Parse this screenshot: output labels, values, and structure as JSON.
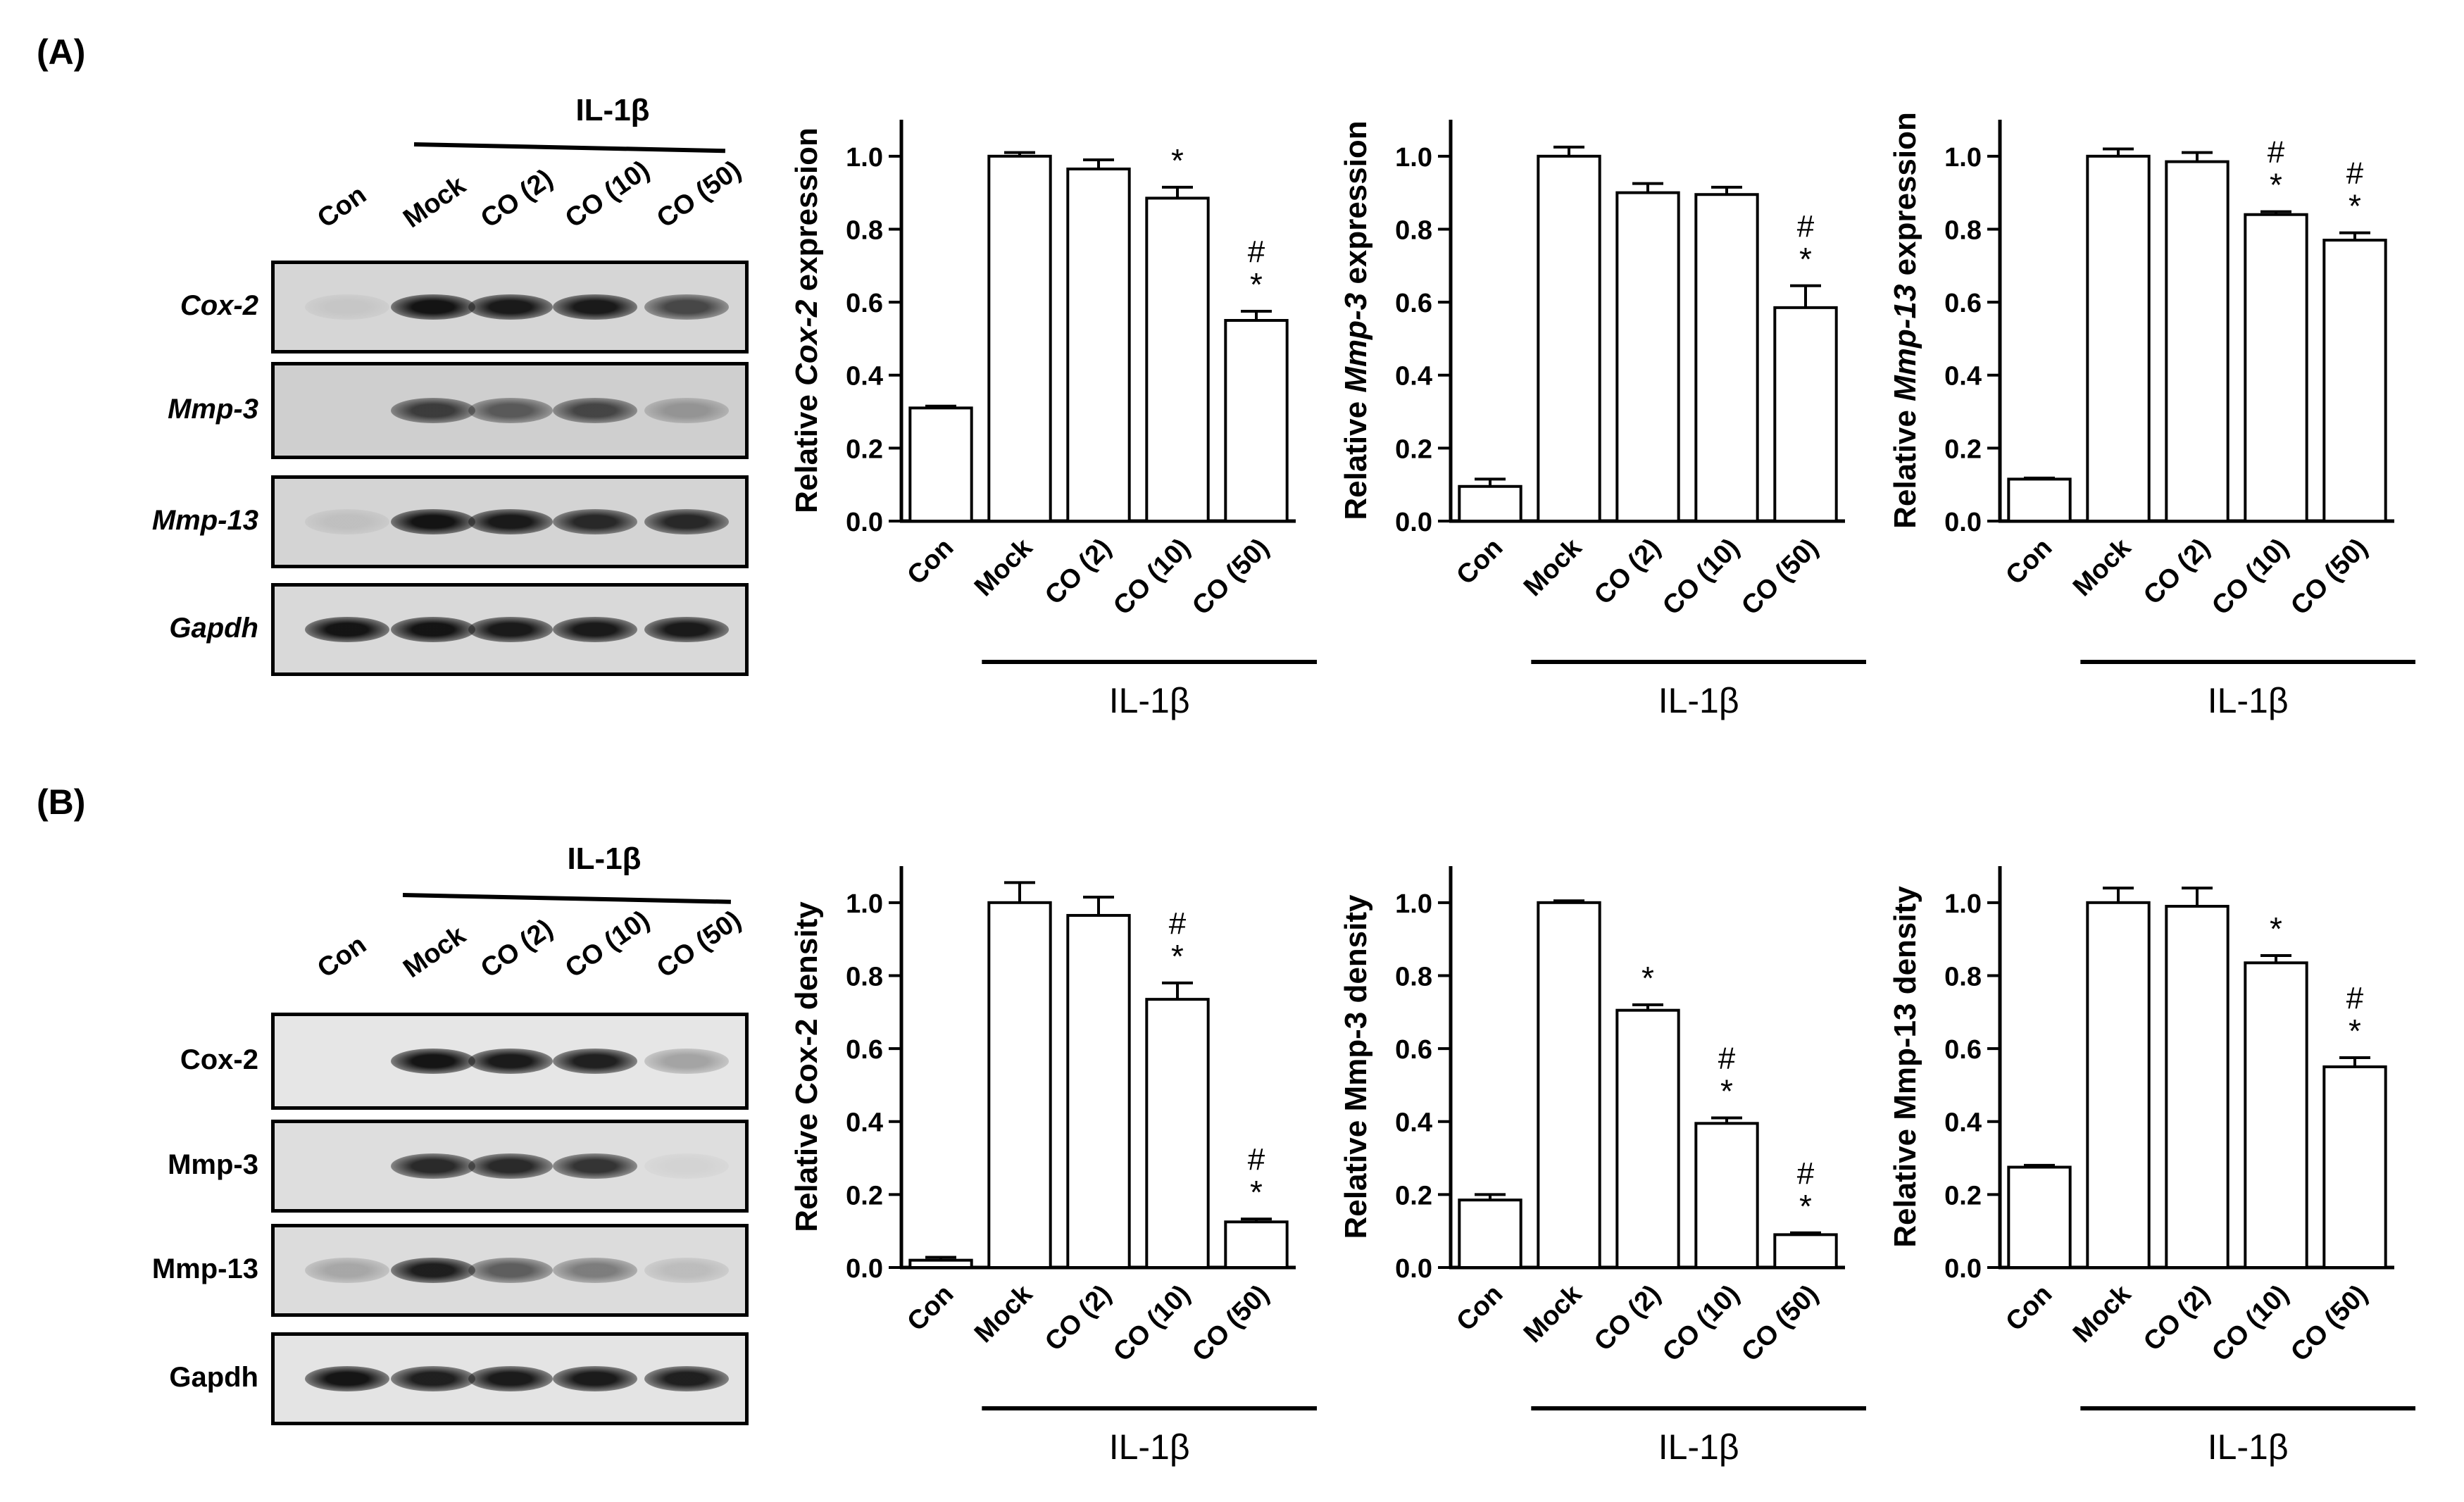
{
  "panels": [
    {
      "label": "(A)",
      "blot": {
        "header": "IL-1β",
        "lanes": [
          "Con",
          "Mock",
          "CO (2)",
          "CO (10)",
          "CO (50)"
        ],
        "italic_labels": true,
        "rows": [
          {
            "label": "Cox-2",
            "intensity": [
              0.08,
              0.95,
              0.92,
              0.92,
              0.7
            ],
            "background": "#d6d6d6"
          },
          {
            "label": "Mmp-3",
            "intensity": [
              0.0,
              0.75,
              0.6,
              0.7,
              0.3
            ],
            "background": "#cfcfcf"
          },
          {
            "label": "Mmp-13",
            "intensity": [
              0.1,
              0.95,
              0.92,
              0.85,
              0.85
            ],
            "background": "#d4d4d4"
          },
          {
            "label": "Gapdh",
            "intensity": [
              0.95,
              0.95,
              0.92,
              0.92,
              0.92
            ],
            "background": "#d9d9d9"
          }
        ]
      }
    },
    {
      "label": "(B)",
      "blot": {
        "header": "IL-1β",
        "lanes": [
          "Con",
          "Mock",
          "CO (2)",
          "CO (10)",
          "CO (50)"
        ],
        "italic_labels": false,
        "rows": [
          {
            "label": "Cox-2",
            "intensity": [
              0.0,
              0.95,
              0.92,
              0.9,
              0.3
            ],
            "background": "#e6e6e6"
          },
          {
            "label": "Mmp-3",
            "intensity": [
              0.0,
              0.85,
              0.85,
              0.8,
              0.05
            ],
            "background": "#dedede"
          },
          {
            "label": "Mmp-13",
            "intensity": [
              0.25,
              0.9,
              0.6,
              0.45,
              0.15
            ],
            "background": "#dcdcdc"
          },
          {
            "label": "Gapdh",
            "intensity": [
              0.95,
              0.9,
              0.92,
              0.92,
              0.9
            ],
            "background": "#e4e4e4"
          }
        ]
      }
    }
  ],
  "chart_data": [
    {
      "type": "bar",
      "panel": "A",
      "ylabel_prefix": "Relative ",
      "ylabel_gene": "Cox-2",
      "ylabel_suffix": " expression",
      "ylabel_italic": true,
      "categories": [
        "Con",
        "Mock",
        "CO (2)",
        "CO (10)",
        "CO (50)"
      ],
      "values": [
        0.31,
        1.0,
        0.965,
        0.885,
        0.55
      ],
      "errors": [
        0.005,
        0.01,
        0.025,
        0.03,
        0.025
      ],
      "annotations": [
        "",
        "",
        "",
        "*",
        "#\n*"
      ],
      "ylim": [
        0,
        1.1
      ],
      "yticks": [
        "0.0",
        "0.2",
        "0.4",
        "0.6",
        "0.8",
        "1.0"
      ],
      "group_label": "IL-1β"
    },
    {
      "type": "bar",
      "panel": "A",
      "ylabel_prefix": "Relative ",
      "ylabel_gene": "Mmp-3",
      "ylabel_suffix": " expression",
      "ylabel_italic": true,
      "categories": [
        "Con",
        "Mock",
        "CO (2)",
        "CO (10)",
        "CO (50)"
      ],
      "values": [
        0.095,
        1.0,
        0.9,
        0.895,
        0.585
      ],
      "errors": [
        0.02,
        0.025,
        0.025,
        0.02,
        0.06
      ],
      "annotations": [
        "",
        "",
        "",
        "",
        "#\n*"
      ],
      "ylim": [
        0,
        1.1
      ],
      "yticks": [
        "0.0",
        "0.2",
        "0.4",
        "0.6",
        "0.8",
        "1.0"
      ],
      "group_label": "IL-1β"
    },
    {
      "type": "bar",
      "panel": "A",
      "ylabel_prefix": "Relative ",
      "ylabel_gene": "Mmp-13",
      "ylabel_suffix": " expression",
      "ylabel_italic": true,
      "categories": [
        "Con",
        "Mock",
        "CO (2)",
        "CO (10)",
        "CO (50)"
      ],
      "values": [
        0.115,
        1.0,
        0.985,
        0.84,
        0.77
      ],
      "errors": [
        0.003,
        0.02,
        0.025,
        0.008,
        0.02
      ],
      "annotations": [
        "",
        "",
        "",
        "#\n*",
        "#\n*"
      ],
      "ylim": [
        0,
        1.1
      ],
      "yticks": [
        "0.0",
        "0.2",
        "0.4",
        "0.6",
        "0.8",
        "1.0"
      ],
      "group_label": "IL-1β"
    },
    {
      "type": "bar",
      "panel": "B",
      "ylabel_prefix": "Relative ",
      "ylabel_gene": "Cox-2",
      "ylabel_suffix": " density",
      "ylabel_italic": false,
      "categories": [
        "Con",
        "Mock",
        "CO (2)",
        "CO (10)",
        "CO (50)"
      ],
      "values": [
        0.02,
        1.0,
        0.965,
        0.735,
        0.125
      ],
      "errors": [
        0.008,
        0.055,
        0.05,
        0.045,
        0.008
      ],
      "annotations": [
        "",
        "",
        "",
        "#\n*",
        "#\n*"
      ],
      "ylim": [
        0,
        1.1
      ],
      "yticks": [
        "0.0",
        "0.2",
        "0.4",
        "0.6",
        "0.8",
        "1.0"
      ],
      "group_label": "IL-1β"
    },
    {
      "type": "bar",
      "panel": "B",
      "ylabel_prefix": "Relative ",
      "ylabel_gene": "Mmp-3",
      "ylabel_suffix": " density",
      "ylabel_italic": false,
      "categories": [
        "Con",
        "Mock",
        "CO (2)",
        "CO (10)",
        "CO (50)"
      ],
      "values": [
        0.185,
        1.0,
        0.705,
        0.395,
        0.09
      ],
      "errors": [
        0.015,
        0.005,
        0.015,
        0.015,
        0.005
      ],
      "annotations": [
        "",
        "",
        "*",
        "#\n*",
        "#\n*"
      ],
      "ylim": [
        0,
        1.1
      ],
      "yticks": [
        "0.0",
        "0.2",
        "0.4",
        "0.6",
        "0.8",
        "1.0"
      ],
      "group_label": "IL-1β"
    },
    {
      "type": "bar",
      "panel": "B",
      "ylabel_prefix": "Relative ",
      "ylabel_gene": "Mmp-13",
      "ylabel_suffix": " density",
      "ylabel_italic": false,
      "categories": [
        "Con",
        "Mock",
        "CO (2)",
        "CO (10)",
        "CO (50)"
      ],
      "values": [
        0.275,
        1.0,
        0.99,
        0.835,
        0.55
      ],
      "errors": [
        0.005,
        0.04,
        0.05,
        0.02,
        0.025
      ],
      "annotations": [
        "",
        "",
        "",
        "*",
        "#\n*"
      ],
      "ylim": [
        0,
        1.1
      ],
      "yticks": [
        "0.0",
        "0.2",
        "0.4",
        "0.6",
        "0.8",
        "1.0"
      ],
      "group_label": "IL-1β"
    }
  ]
}
